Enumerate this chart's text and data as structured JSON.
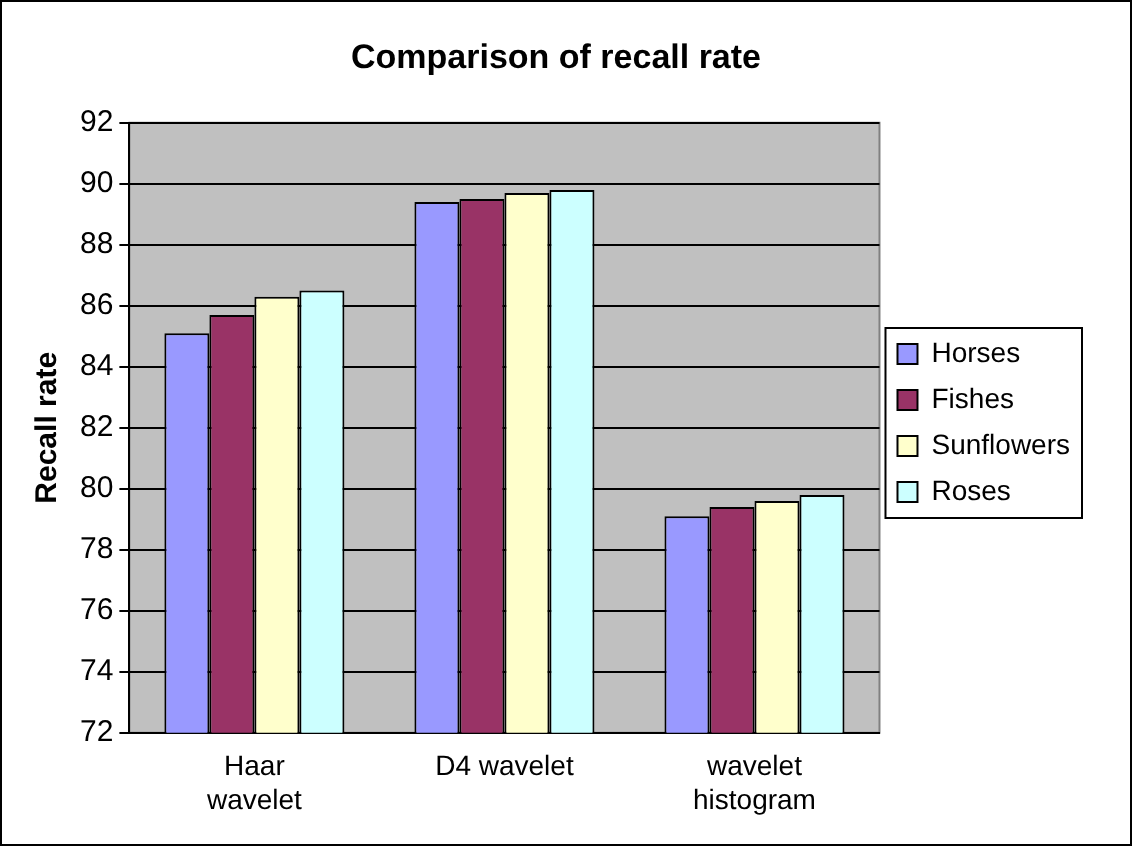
{
  "chart_data": {
    "type": "bar",
    "title": "Comparison of recall rate",
    "ylabel": "Recall rate",
    "categories": [
      "Haar wavelet",
      "D4 wavelet",
      "wavelet histogram"
    ],
    "series": [
      {
        "name": "Horses",
        "color": "#9999ff",
        "values": [
          85.1,
          89.4,
          79.1
        ]
      },
      {
        "name": "Fishes",
        "color": "#993366",
        "values": [
          85.7,
          89.5,
          79.4
        ]
      },
      {
        "name": "Sunflowers",
        "color": "#ffffcc",
        "values": [
          86.3,
          89.7,
          79.6
        ]
      },
      {
        "name": "Roses",
        "color": "#ccffff",
        "values": [
          86.5,
          89.8,
          79.8
        ]
      }
    ],
    "ylim": [
      72,
      92
    ],
    "yticks": [
      72,
      74,
      76,
      78,
      80,
      82,
      84,
      86,
      88,
      90,
      92
    ],
    "grid": "y",
    "legend": "right"
  }
}
